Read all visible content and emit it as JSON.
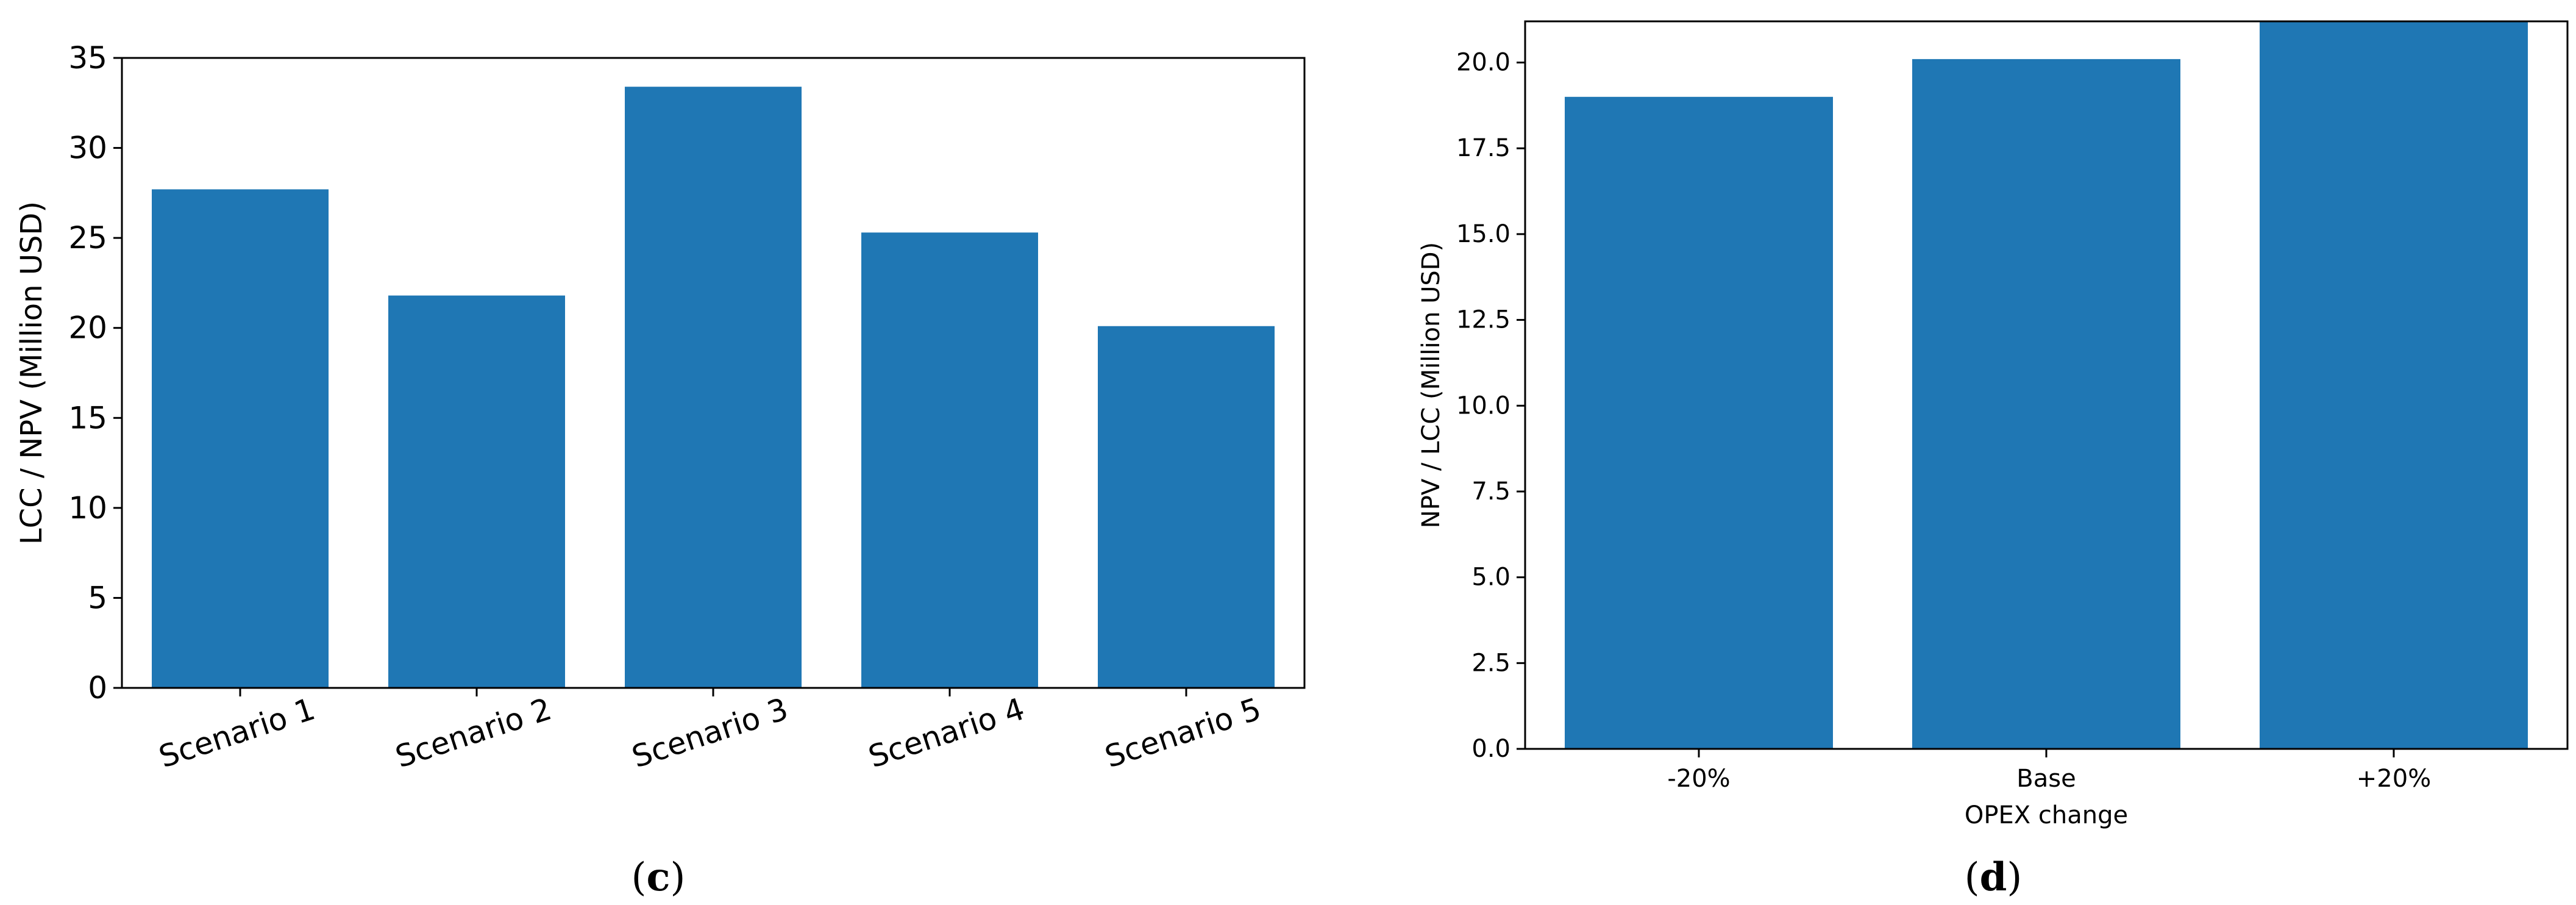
{
  "chart_data": [
    {
      "type": "bar",
      "panel_label": "(c)",
      "categories": [
        "Scenario 1",
        "Scenario 2",
        "Scenario 3",
        "Scenario 4",
        "Scenario 5"
      ],
      "values": [
        27.7,
        21.8,
        33.4,
        25.3,
        20.1
      ],
      "xlabel": "",
      "ylabel": "LCC / NPV (Million USD)",
      "ylim": [
        0,
        35
      ],
      "yticks": [
        0,
        5,
        10,
        15,
        20,
        25,
        30,
        35
      ],
      "ytick_labels": [
        "0",
        "5",
        "10",
        "15",
        "20",
        "25",
        "30",
        "35"
      ],
      "xtick_rotation": "rotated",
      "grid": false,
      "bar_color": "#1f77b4"
    },
    {
      "type": "bar",
      "panel_label": "(d)",
      "categories": [
        "-20%",
        "Base",
        "+20%"
      ],
      "values": [
        19.0,
        20.1,
        21.2
      ],
      "xlabel": "OPEX change",
      "ylabel": "NPV / LCC (Million USD)",
      "ylim": [
        0,
        21.2
      ],
      "yticks": [
        0,
        2.5,
        5,
        7.5,
        10,
        12.5,
        15,
        17.5,
        20
      ],
      "ytick_labels": [
        "0.0",
        "2.5",
        "5.0",
        "7.5",
        "10.0",
        "12.5",
        "15.0",
        "17.5",
        "20.0"
      ],
      "grid": false,
      "bar_color": "#1f77b4"
    }
  ]
}
